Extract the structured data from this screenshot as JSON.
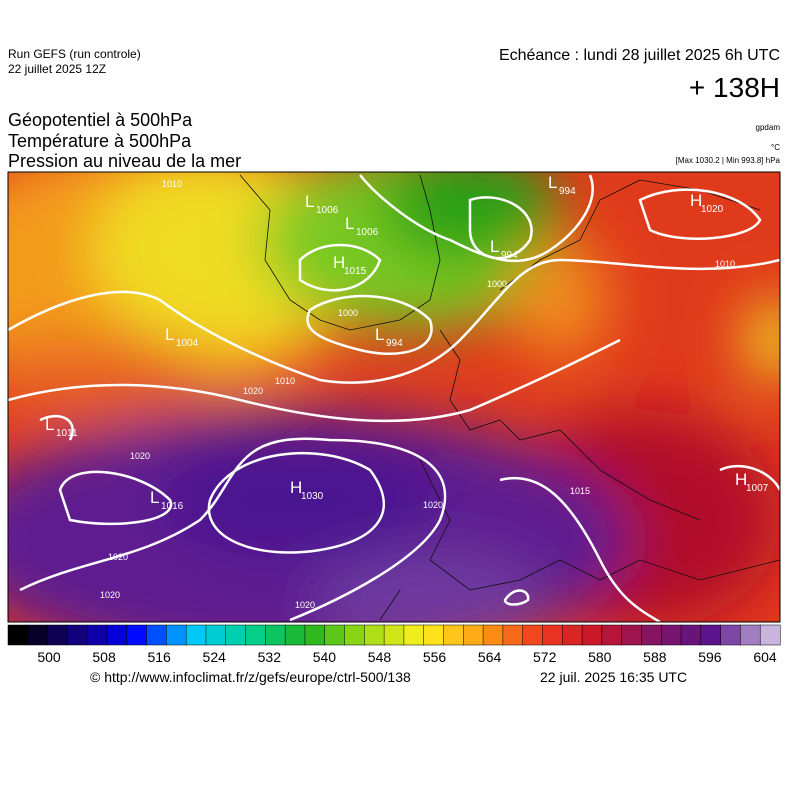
{
  "header": {
    "run": "Run GEFS (run controle)",
    "date": "22 juillet 2025 12Z",
    "echeance": "Echéance : lundi 28 juillet 2025 6h UTC",
    "hour": "+ 138H"
  },
  "fields": [
    "Géopotentiel à 500hPa",
    "Température à 500hPa",
    "Pression au niveau de la mer"
  ],
  "units": {
    "geopotential": "gpdam",
    "temperature": "°C",
    "pressure": "[Max 1030.2 | Min 993.8] hPa"
  },
  "map": {
    "centers": [
      {
        "letter": "L",
        "pressure": 1006
      },
      {
        "letter": "L",
        "pressure": 1006
      },
      {
        "letter": "H",
        "pressure": 1015
      },
      {
        "letter": "L",
        "pressure": 994
      },
      {
        "letter": "L",
        "pressure": 994
      },
      {
        "letter": "L",
        "pressure": 994
      },
      {
        "letter": "H",
        "pressure": 1020
      },
      {
        "letter": "L",
        "pressure": 1004
      },
      {
        "letter": "L",
        "pressure": 1011
      },
      {
        "letter": "L",
        "pressure": 1016
      },
      {
        "letter": "H",
        "pressure": 1030
      },
      {
        "letter": "H",
        "pressure": 1007
      }
    ],
    "isobar_labels": [
      1010,
      1000,
      1000,
      1010,
      1020,
      1020,
      1020,
      1020,
      1020,
      1020,
      1010,
      1015
    ]
  },
  "colorbar": {
    "ticks": [
      500,
      508,
      516,
      524,
      532,
      540,
      548,
      556,
      564,
      572,
      580,
      588,
      596,
      604
    ]
  },
  "footer": {
    "url": "© http://www.infoclimat.fr/z/gefs/europe/ctrl-500/138",
    "timestamp": "22 juil. 2025 16:35 UTC"
  }
}
